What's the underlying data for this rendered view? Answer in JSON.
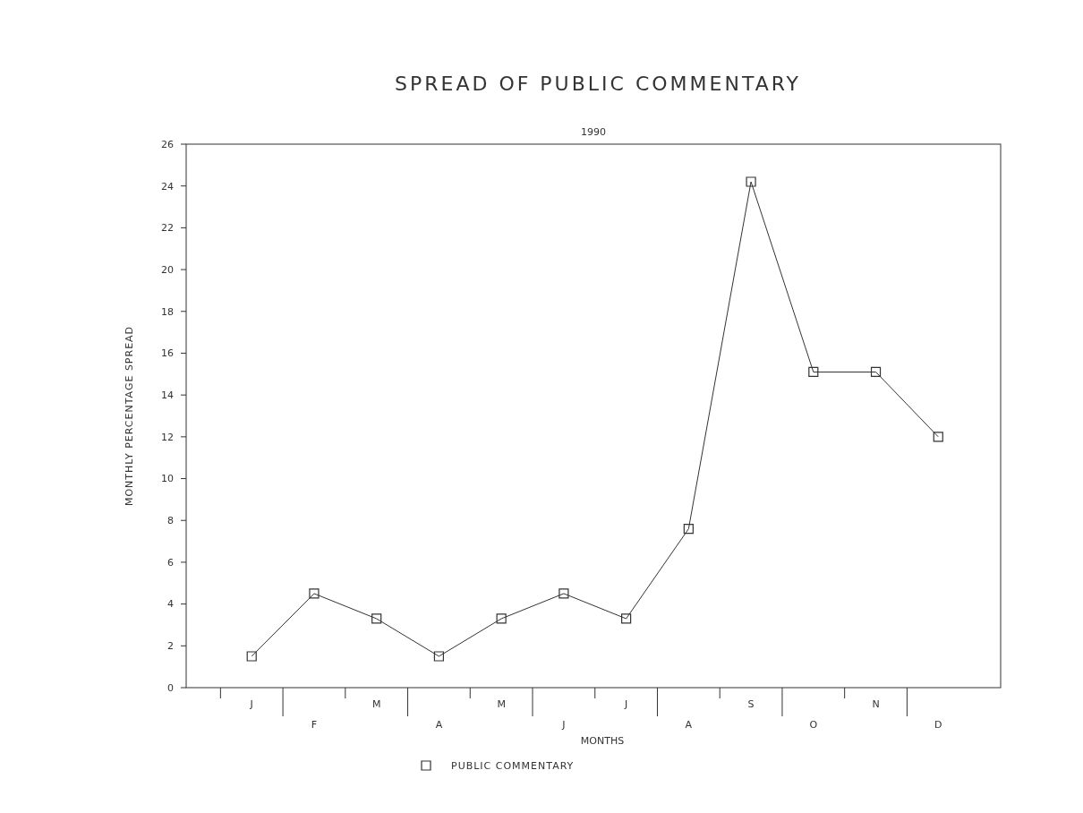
{
  "chart_data": {
    "type": "line",
    "title": "SPREAD OF PUBLIC COMMENTARY",
    "subtitle": "1990",
    "xlabel": "MONTHS",
    "ylabel": "MONTHLY PERCENTAGE SPREAD",
    "categories": [
      "J",
      "F",
      "M",
      "A",
      "M",
      "J",
      "J",
      "A",
      "S",
      "O",
      "N",
      "D"
    ],
    "series": [
      {
        "name": "PUBLIC COMMENTARY",
        "color": "#333333",
        "values": [
          1.5,
          4.5,
          3.3,
          1.5,
          3.3,
          4.5,
          3.3,
          7.6,
          24.2,
          15.1,
          15.1,
          12.0
        ]
      }
    ],
    "ylim": [
      0,
      26
    ],
    "yticks": [
      0,
      2,
      4,
      6,
      8,
      10,
      12,
      14,
      16,
      18,
      20,
      22,
      24,
      26
    ],
    "grid": false,
    "legend": "bottom",
    "marker": "square",
    "line_style": "solid"
  }
}
